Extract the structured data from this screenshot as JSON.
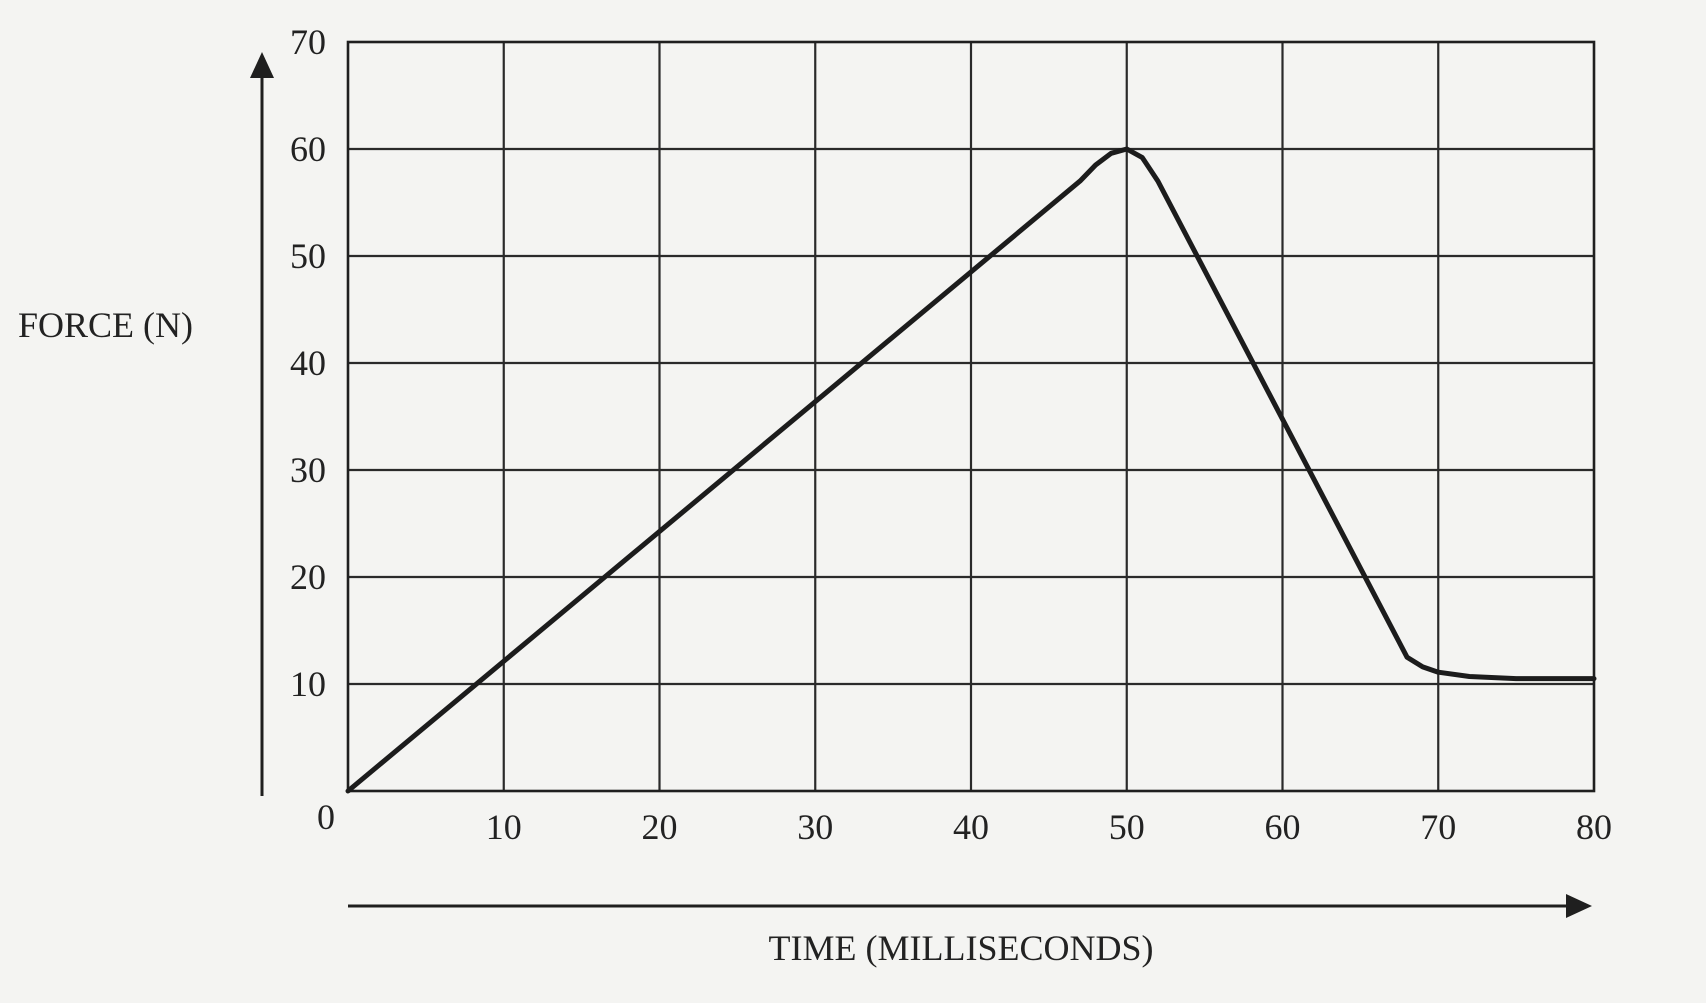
{
  "chart_data": {
    "type": "line",
    "xlabel": "TIME (MILLISECONDS)",
    "ylabel": "FORCE (N)",
    "xlim": [
      0,
      80
    ],
    "ylim": [
      0,
      70
    ],
    "x_ticks": [
      0,
      10,
      20,
      30,
      40,
      50,
      60,
      70,
      80
    ],
    "y_ticks": [
      10,
      20,
      30,
      40,
      50,
      60,
      70
    ],
    "grid": true,
    "series": [
      {
        "x": [
          0,
          47,
          48,
          49,
          50,
          51,
          52,
          68,
          69,
          70,
          72,
          75,
          80
        ],
        "y": [
          0,
          57,
          58.5,
          59.6,
          60,
          59.2,
          57,
          12.5,
          11.6,
          11.1,
          10.7,
          10.5,
          10.5
        ]
      }
    ]
  }
}
